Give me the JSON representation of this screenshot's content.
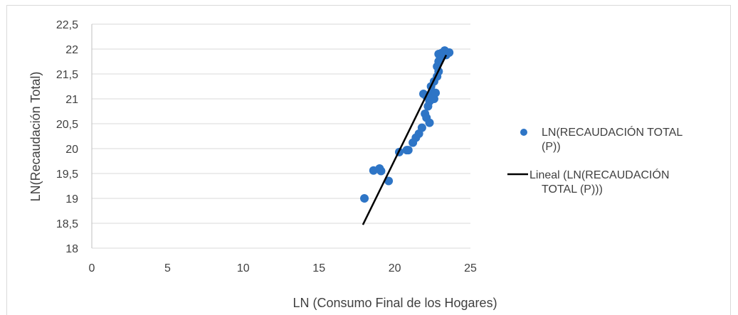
{
  "chart_data": {
    "type": "scatter",
    "xlabel": "LN (Consumo  Final de los Hogares)",
    "ylabel": "LN(Recaudación  Total)",
    "xlim": [
      0,
      25
    ],
    "ylim": [
      18,
      22.5
    ],
    "x_ticks": [
      "0",
      "5",
      "10",
      "15",
      "20",
      "25"
    ],
    "y_ticks": [
      "18",
      "18,5",
      "19",
      "19,5",
      "20",
      "20,5",
      "21",
      "21,5",
      "22",
      "22,5"
    ],
    "grid": "horizontal",
    "legend_position": "right",
    "series": [
      {
        "name": "LN(RECAUDACIÓN TOTAL (P))",
        "color": "#2e75c6",
        "points": [
          [
            18.0,
            19.0
          ],
          [
            18.6,
            19.56
          ],
          [
            19.0,
            19.6
          ],
          [
            19.1,
            19.55
          ],
          [
            19.6,
            19.35
          ],
          [
            20.3,
            19.93
          ],
          [
            20.8,
            19.97
          ],
          [
            20.9,
            19.97
          ],
          [
            21.2,
            20.12
          ],
          [
            21.4,
            20.22
          ],
          [
            21.6,
            20.3
          ],
          [
            21.8,
            20.42
          ],
          [
            22.0,
            20.7
          ],
          [
            22.3,
            20.52
          ],
          [
            22.1,
            20.62
          ],
          [
            21.9,
            21.1
          ],
          [
            22.1,
            21.05
          ],
          [
            22.2,
            20.85
          ],
          [
            22.3,
            20.95
          ],
          [
            22.5,
            21.1
          ],
          [
            22.6,
            21.0
          ],
          [
            22.7,
            21.12
          ],
          [
            22.4,
            21.25
          ],
          [
            22.6,
            21.35
          ],
          [
            22.8,
            21.45
          ],
          [
            22.9,
            21.55
          ],
          [
            22.8,
            21.65
          ],
          [
            22.9,
            21.75
          ],
          [
            23.0,
            21.82
          ],
          [
            22.9,
            21.9
          ],
          [
            23.1,
            21.92
          ],
          [
            23.3,
            21.97
          ],
          [
            23.6,
            21.93
          ],
          [
            23.4,
            21.88
          ]
        ]
      }
    ],
    "trendline": {
      "name": "Lineal (LN(RECAUDACIÓN TOTAL (P)))",
      "color": "#000000",
      "from": [
        17.9,
        18.47
      ],
      "to": [
        23.4,
        21.88
      ]
    }
  }
}
